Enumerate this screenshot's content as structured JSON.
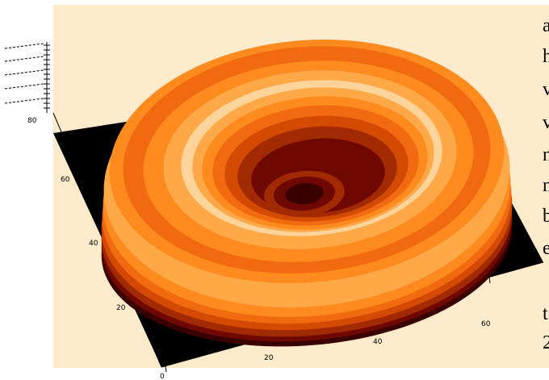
{
  "chart_data": {
    "type": "surface",
    "title": "",
    "xlabel": "",
    "ylabel": "",
    "zlabel": "",
    "x_ticks": [
      "0",
      "20",
      "40",
      "60"
    ],
    "y_ticks": [
      "20",
      "40",
      "60"
    ],
    "z_ticks": [
      "80"
    ],
    "colormap": "red-temperature",
    "background_color": "#fdebcb",
    "plane_color": "#000000",
    "colors": [
      "#3a0000",
      "#6e0800",
      "#a12a00",
      "#d44a00",
      "#f26a10",
      "#ff8a1e",
      "#ffa848",
      "#ffd49a"
    ],
    "surface": {
      "shape": "ring",
      "rim_height_relative": 1.0,
      "center_height_relative": 0.1
    }
  },
  "side_text": [
    "a",
    "h",
    "v",
    "v",
    "n",
    "n",
    "b",
    "e",
    "t",
    "2"
  ]
}
